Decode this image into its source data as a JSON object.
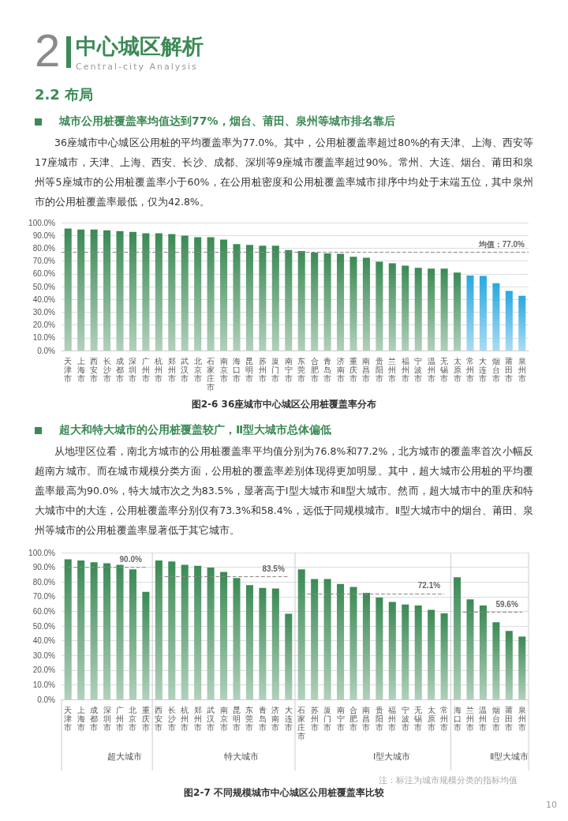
{
  "chart_data": [
    {
      "type": "bar",
      "title": "图2-6  36座城市中心城区公用桩覆盖率分布",
      "annotations": [
        "2",
        "中心城区解析",
        "Central-city Analysis",
        "2.2 布局",
        "城市公用桩覆盖率均值达到77%，烟台、莆田、泉州等城市排名靠后",
        "36座城市中心城区公用桩的平均覆盖率为77.0%。其中，公用桩覆盖率超过80%的有天津、上海、西安等17座城市，天津、上海、西安、长沙、成都、深圳等9座城市覆盖率超过90%。常州、大连、烟台、莆田和泉州等5座城市的公用桩覆盖率小于60%，在公用桩密度和公用桩覆盖率城市排序中均处于末端五位，其中泉州市的公用桩覆盖率最低，仅为42.8%。"
      ],
      "categories": [
        "天津市",
        "上海市",
        "西安市",
        "长沙市",
        "成都市",
        "深圳市",
        "广州市",
        "杭州市",
        "郑州市",
        "武汉市",
        "北京市",
        "石家庄市",
        "南京市",
        "海口市",
        "昆明市",
        "苏州市",
        "厦门市",
        "南宁市",
        "东莞市",
        "合肥市",
        "青岛市",
        "济南市",
        "重庆市",
        "南昌市",
        "贵阳市",
        "兰州市",
        "福州市",
        "宁波市",
        "温州市",
        "无锡市",
        "太原市",
        "常州市",
        "大连市",
        "烟台市",
        "莆田市",
        "泉州市"
      ],
      "values": [
        95.4,
        94.6,
        94.6,
        94.0,
        93.4,
        92.8,
        91.6,
        91.6,
        91.0,
        89.8,
        88.6,
        88.6,
        86.8,
        83.2,
        82.6,
        82.0,
        82.0,
        78.6,
        77.8,
        76.6,
        75.9,
        75.6,
        73.3,
        72.6,
        69.4,
        68.2,
        66.4,
        64.6,
        64.0,
        64.0,
        61.0,
        58.6,
        58.4,
        52.6,
        46.6,
        42.8
      ],
      "colors": [
        "#3b8a55",
        "#3b8a55",
        "#3b8a55",
        "#3b8a55",
        "#3b8a55",
        "#3b8a55",
        "#3b8a55",
        "#3b8a55",
        "#3b8a55",
        "#3b8a55",
        "#3b8a55",
        "#3b8a55",
        "#3b8a55",
        "#3b8a55",
        "#3b8a55",
        "#3b8a55",
        "#3b8a55",
        "#3b8a55",
        "#3b8a55",
        "#3b8a55",
        "#3b8a55",
        "#3b8a55",
        "#3b8a55",
        "#3b8a55",
        "#3b8a55",
        "#3b8a55",
        "#3b8a55",
        "#3b8a55",
        "#3b8a55",
        "#3b8a55",
        "#3b8a55",
        "#29a8e0",
        "#29a8e0",
        "#29a8e0",
        "#29a8e0",
        "#29a8e0"
      ],
      "ylim": [
        0,
        100
      ],
      "yticks": [
        {
          "value": 0,
          "label": "0.0%"
        },
        {
          "value": 10,
          "label": "10.0%"
        },
        {
          "value": 20,
          "label": "20.0%"
        },
        {
          "value": 30,
          "label": "30.0%"
        },
        {
          "value": 40,
          "label": "40.0%"
        },
        {
          "value": 50,
          "label": "50.0%"
        },
        {
          "value": 60,
          "label": "60.0%"
        },
        {
          "value": 70,
          "label": "70.0%"
        },
        {
          "value": 80,
          "label": "80.0%"
        },
        {
          "value": 90,
          "label": "90.0%"
        },
        {
          "value": 100,
          "label": "100.0%"
        }
      ],
      "grid": "y",
      "ref_lines": [
        {
          "axis": "y",
          "value": 77.0,
          "label": "均值：77.0%",
          "color": "#888888",
          "line_style": "dashed"
        }
      ]
    },
    {
      "type": "bar",
      "title": "图2-7 不同规模城市中心城区公用桩覆盖率比较",
      "annotations": [
        "超大和特大城市的公用桩覆盖较广，Ⅱ型大城市总体偏低",
        "从地理区位看，南北方城市的公用桩覆盖率平均值分别为76.8%和77.2%，北方城市的覆盖率首次小幅反超南方城市。而在城市规模分类方面，公用桩的覆盖率差别体现得更加明显。其中，超大城市公用桩的平均覆盖率最高为90.0%，特大城市次之为83.5%，显著高于Ⅰ型大城市和Ⅱ型大城市。然而，超大城市中的重庆和特大城市中的大连，公用桩覆盖率分别仅有73.3%和58.4%，远低于同规模城市。Ⅱ型大城市中的烟台、莆田、泉州等城市的公用桩覆盖率显著低于其它城市。",
        "注：标注为城市规模分类的指标均值",
        "10",
        "超大城市",
        "特大城市",
        "Ⅰ型大城市",
        "Ⅱ型大城市"
      ],
      "categories": [
        "天津市",
        "上海市",
        "成都市",
        "深圳市",
        "广州市",
        "北京市",
        "重庆市",
        "西安市",
        "长沙市",
        "杭州市",
        "郑州市",
        "武汉市",
        "南京市",
        "昆明市",
        "东莞市",
        "青岛市",
        "济南市",
        "大连市",
        "石家庄市",
        "苏州市",
        "厦门市",
        "南宁市",
        "合肥市",
        "南昌市",
        "贵阳市",
        "福州市",
        "宁波市",
        "无锡市",
        "太原市",
        "常州市",
        "海口市",
        "兰州市",
        "温州市",
        "烟台市",
        "莆田市",
        "泉州市"
      ],
      "series": [
        {
          "color": "#3b8a55",
          "values": [
            95.4,
            94.6,
            93.4,
            92.8,
            91.6,
            88.6,
            73.3,
            null,
            null,
            null,
            null,
            null,
            null,
            null,
            null,
            null,
            null,
            null,
            null,
            null,
            null,
            null,
            null,
            null,
            null,
            null,
            null,
            null,
            null,
            null,
            null,
            null,
            null,
            null,
            null,
            null
          ]
        },
        {
          "color": "#3b8a55",
          "values": [
            null,
            null,
            null,
            null,
            null,
            null,
            null,
            94.6,
            94.0,
            91.6,
            91.0,
            89.8,
            86.8,
            82.6,
            77.8,
            75.9,
            75.6,
            58.4,
            null,
            null,
            null,
            null,
            null,
            null,
            null,
            null,
            null,
            null,
            null,
            null,
            null,
            null,
            null,
            null,
            null,
            null
          ]
        },
        {
          "color": "#3b8a55",
          "values": [
            null,
            null,
            null,
            null,
            null,
            null,
            null,
            null,
            null,
            null,
            null,
            null,
            null,
            null,
            null,
            null,
            null,
            null,
            88.6,
            82.0,
            82.0,
            78.6,
            76.6,
            72.6,
            69.4,
            66.4,
            64.6,
            64.0,
            61.0,
            58.6,
            null,
            null,
            null,
            null,
            null,
            null
          ]
        },
        {
          "color": "#3b8a55",
          "values": [
            null,
            null,
            null,
            null,
            null,
            null,
            null,
            null,
            null,
            null,
            null,
            null,
            null,
            null,
            null,
            null,
            null,
            null,
            null,
            null,
            null,
            null,
            null,
            null,
            null,
            null,
            null,
            null,
            null,
            null,
            83.2,
            68.2,
            64.0,
            52.6,
            46.6,
            42.8
          ]
        }
      ],
      "ylim": [
        0,
        100
      ],
      "yticks": [
        {
          "value": 0,
          "label": "0.0%"
        },
        {
          "value": 10,
          "label": "10.0%"
        },
        {
          "value": 20,
          "label": "20.0%"
        },
        {
          "value": 30,
          "label": "30.0%"
        },
        {
          "value": 40,
          "label": "40.0%"
        },
        {
          "value": 50,
          "label": "50.0%"
        },
        {
          "value": 60,
          "label": "60.0%"
        },
        {
          "value": 70,
          "label": "70.0%"
        },
        {
          "value": 80,
          "label": "80.0%"
        },
        {
          "value": 90,
          "label": "90.0%"
        },
        {
          "value": 100,
          "label": "100.0%"
        }
      ],
      "grid": "y",
      "ref_lines": [
        {
          "axis": "y",
          "value": 90.0,
          "label": "90.0%",
          "color": "#888888",
          "line_style": "dashed"
        },
        {
          "axis": "y",
          "value": 83.5,
          "label": "83.5%",
          "color": "#888888",
          "line_style": "dashed"
        },
        {
          "axis": "y",
          "value": 72.1,
          "label": "72.1%",
          "color": "#888888",
          "line_style": "dashed"
        },
        {
          "axis": "y",
          "value": 59.6,
          "label": "59.6%",
          "color": "#888888",
          "line_style": "dashed"
        }
      ]
    }
  ]
}
